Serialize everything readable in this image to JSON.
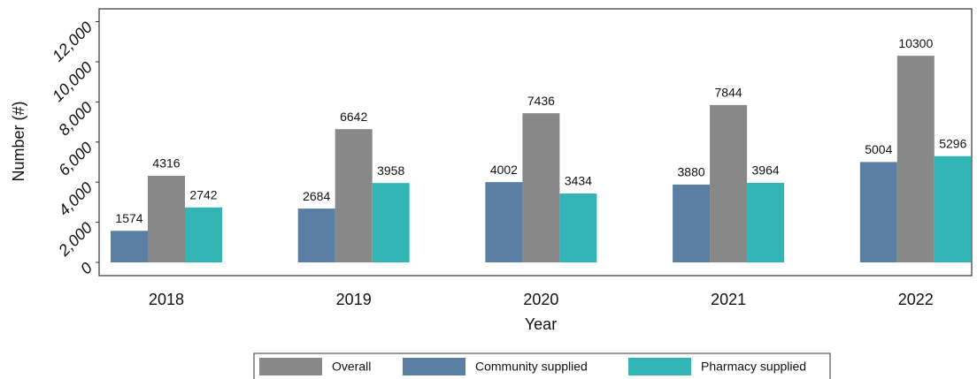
{
  "chart_data": {
    "type": "bar",
    "x_label": "Year",
    "y_label": "Number (#)",
    "categories": [
      "2018",
      "2019",
      "2020",
      "2021",
      "2022"
    ],
    "series": [
      {
        "name": "Overall",
        "color": "#888888",
        "values": [
          4316,
          6642,
          7436,
          7844,
          10300
        ]
      },
      {
        "name": "Community supplied",
        "color": "#5b7fa3",
        "values": [
          1574,
          2684,
          4002,
          3880,
          5004
        ]
      },
      {
        "name": "Pharmacy supplied",
        "color": "#33b5b5",
        "values": [
          2742,
          3958,
          3434,
          3964,
          5296
        ]
      }
    ],
    "ylim": [
      -660,
      12640
    ],
    "yticks": [
      0,
      {
        "value": 2000,
        "label": "2,000"
      },
      {
        "value": 4000,
        "label": "4,000"
      },
      {
        "value": 6000,
        "label": "6,000"
      },
      {
        "value": 8000,
        "label": "8,000"
      },
      {
        "value": 10000,
        "label": "10,000"
      },
      {
        "value": 12000,
        "label": "12,000"
      }
    ],
    "grid": false,
    "legend": "bottom"
  }
}
